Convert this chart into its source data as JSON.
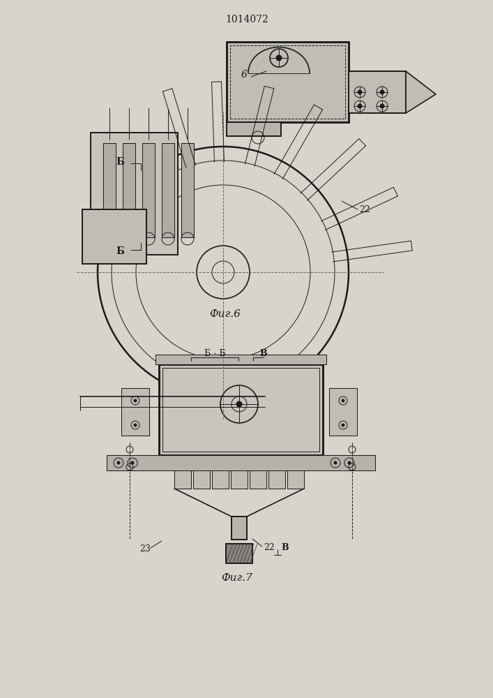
{
  "title": "1014072",
  "fig6_label": "Фиг.6",
  "fig7_label": "Фиг.7",
  "bg_color": "#d8d4cc",
  "line_color": "#1a1a1a",
  "fig_width": 7.07,
  "fig_height": 10.0,
  "section_label_bb": "Б",
  "section_label_bb2": "Б",
  "label_22": "22",
  "label_23": "23",
  "label_bb_section": "Б - Б",
  "label_b": "В",
  "label_6": "6"
}
